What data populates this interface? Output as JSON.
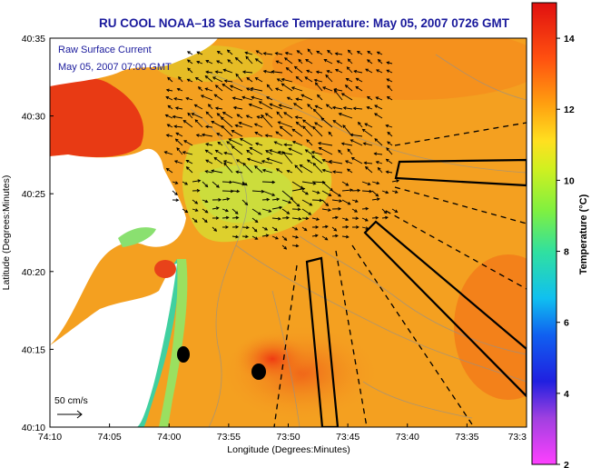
{
  "title": "RU COOL  NOAA–18  Sea Surface Temperature:  May 05, 2007 0726 GMT",
  "annotation": {
    "line1": "Raw Surface Current",
    "line2": "May 05, 2007 07:00 GMT"
  },
  "scale_label": "50 cm/s",
  "x_axis": {
    "label": "Longitude (Degrees:Minutes)",
    "ticks": [
      "74:10",
      "74:05",
      "74:00",
      "73:55",
      "73:50",
      "73:45",
      "73:40",
      "73:35",
      "73:3"
    ]
  },
  "y_axis": {
    "label": "Latitude (Degrees:Minutes)",
    "ticks": [
      "40:35",
      "40:30",
      "40:25",
      "40:20",
      "40:15",
      "40:10"
    ]
  },
  "colorbar": {
    "label": "Temperature (°C)",
    "ticks": [
      "14",
      "12",
      "10",
      "8",
      "6",
      "4",
      "2"
    ],
    "range": [
      2,
      15
    ]
  },
  "colors": {
    "title": "#1a1a9c",
    "annotation": "#1a1a9c",
    "land": "#ffffff",
    "sea_warm": "#f4a020",
    "sea_hot": "#e83010",
    "sea_cool": "#c8e040",
    "sea_cold": "#40d0a0"
  }
}
